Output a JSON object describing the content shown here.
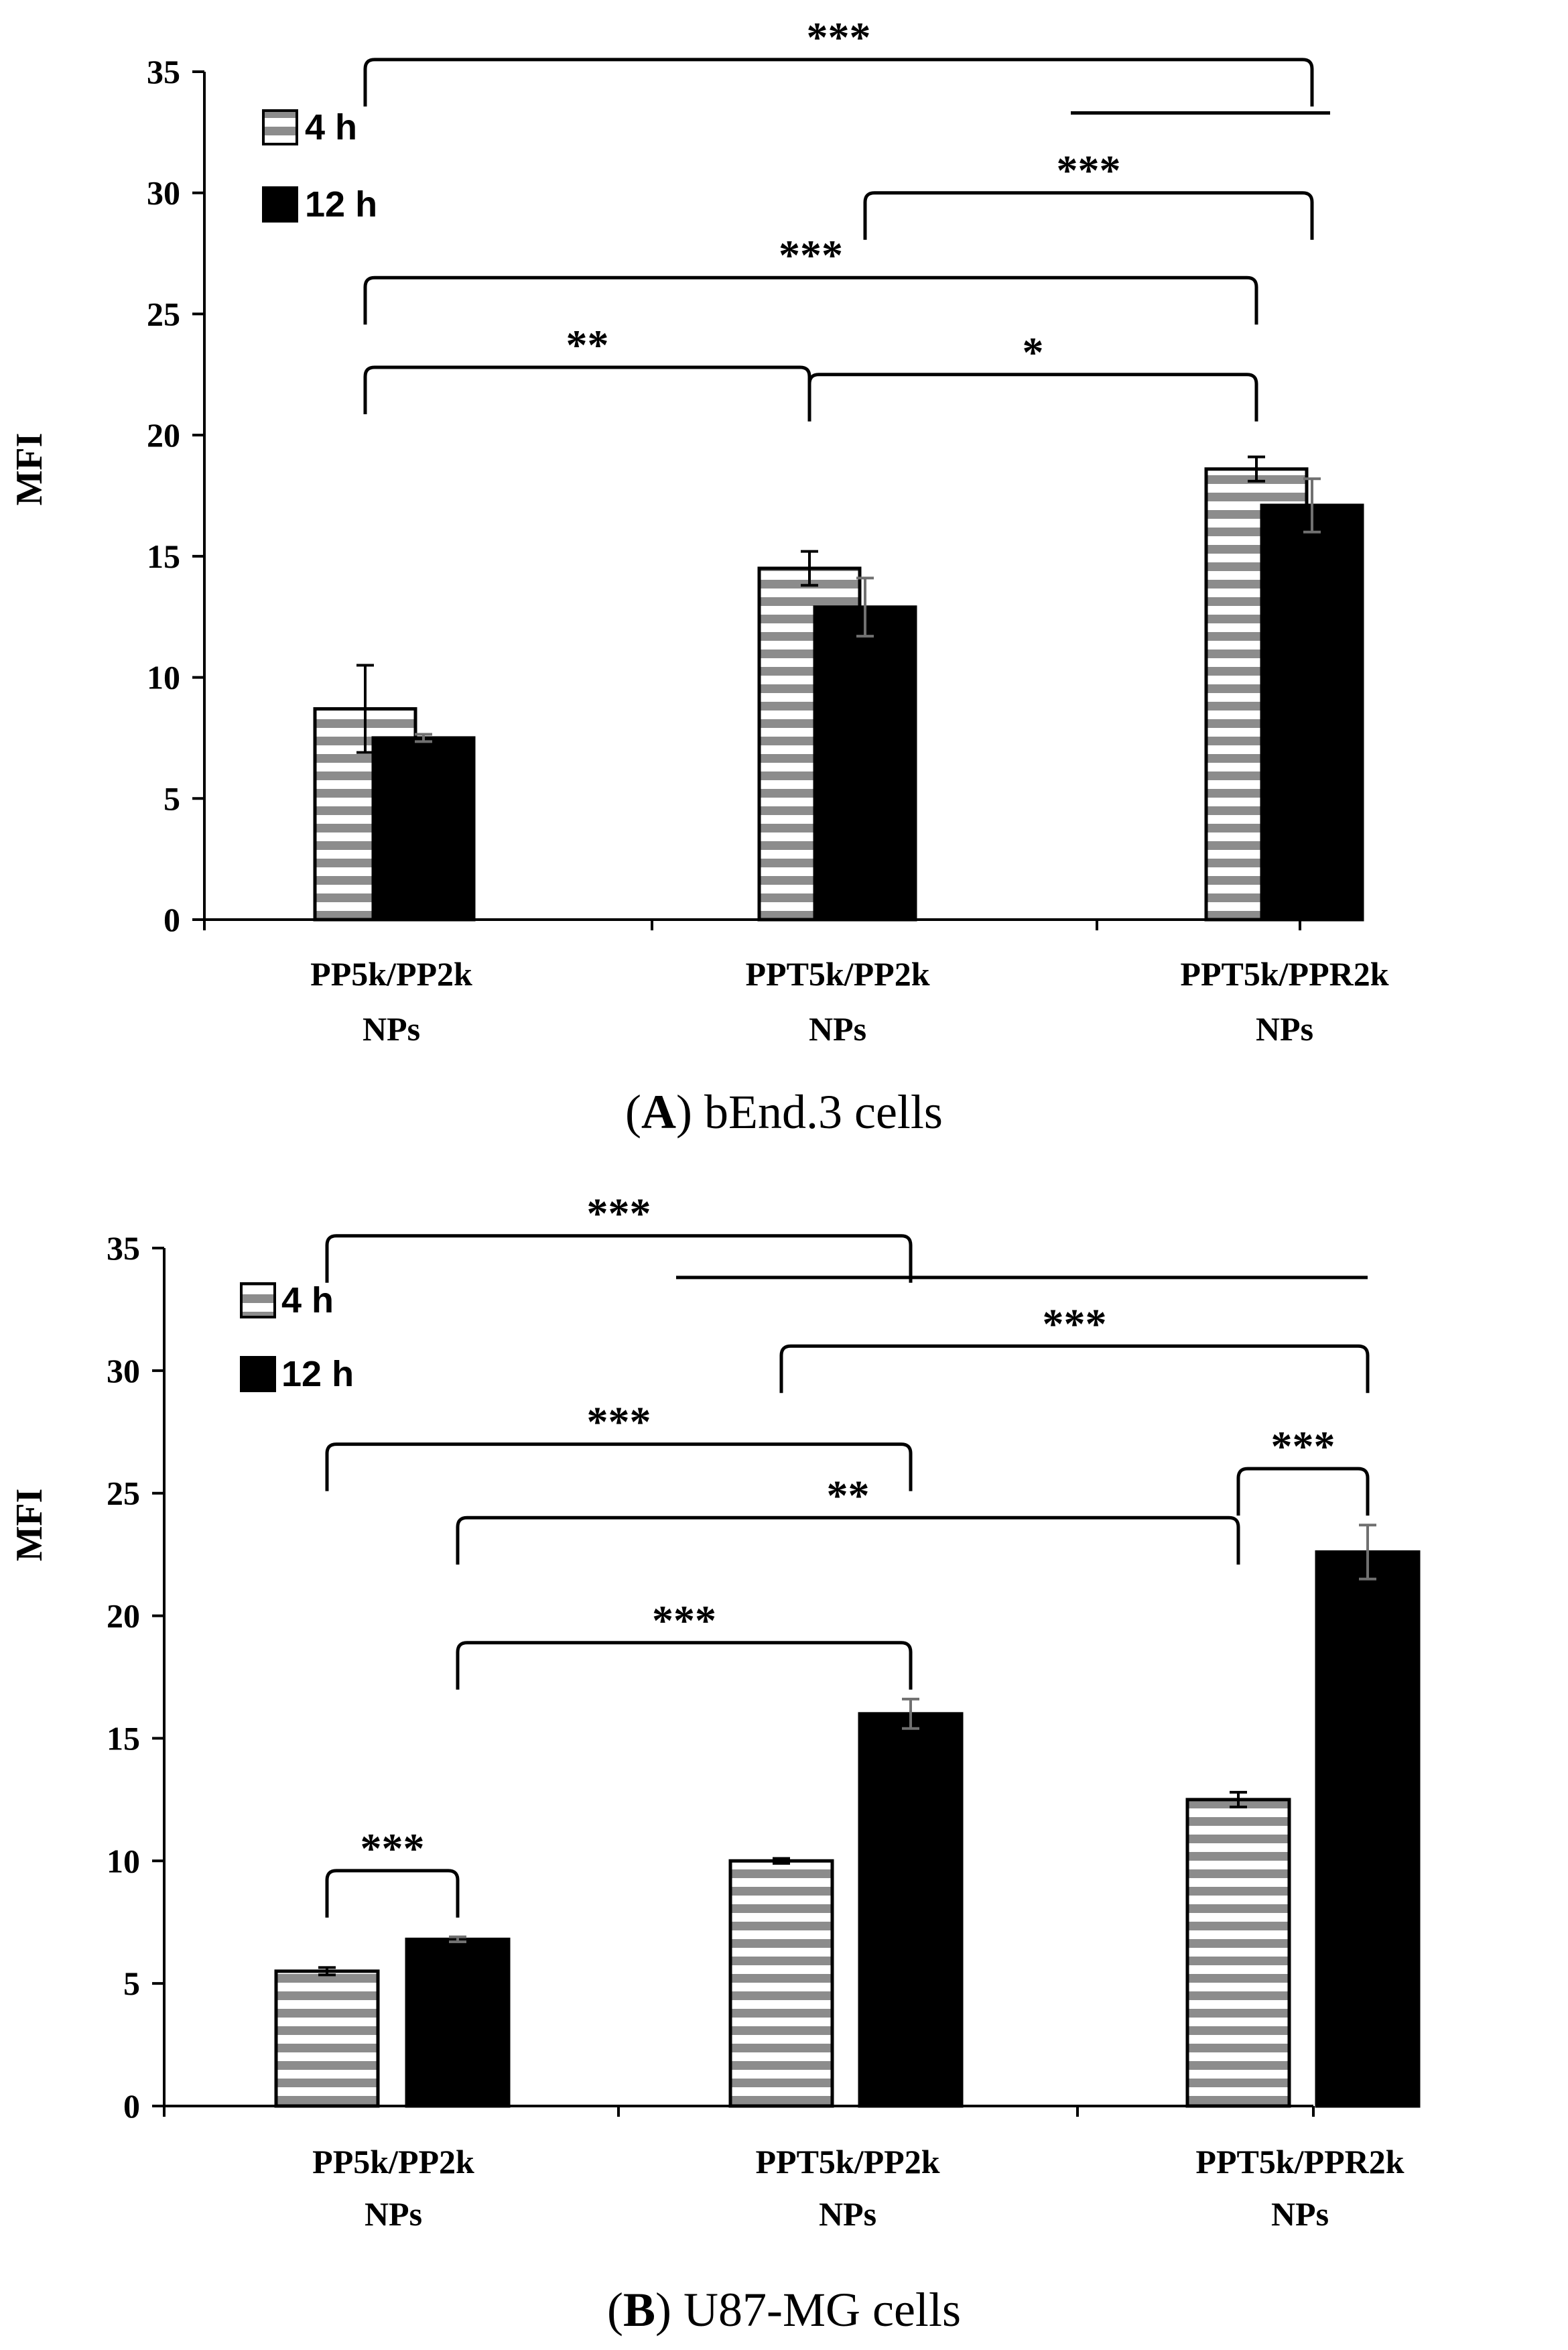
{
  "chart_data": [
    {
      "type": "bar",
      "panel_letter": "A",
      "caption_rest": " bEnd.3 cells",
      "ylabel": "MFI",
      "ylim": [
        0,
        35
      ],
      "yticks": [
        0,
        5,
        10,
        15,
        20,
        25,
        30,
        35
      ],
      "categories": [
        {
          "line1": "PP5k/PP2k",
          "line2": "NPs"
        },
        {
          "line1": "PPT5k/PP2k",
          "line2": "NPs"
        },
        {
          "line1": "PPT5k/PPR2k",
          "line2": "NPs"
        }
      ],
      "series": [
        {
          "name": "4 h",
          "pattern": "striped",
          "values": [
            8.7,
            14.5,
            18.6
          ],
          "errors": [
            1.8,
            0.7,
            0.5
          ]
        },
        {
          "name": "12 h",
          "pattern": "solid",
          "values": [
            7.5,
            12.9,
            17.1
          ],
          "errors": [
            0.15,
            1.2,
            1.1
          ]
        }
      ],
      "significance": [
        {
          "label": "***",
          "from": [
            0,
            0
          ],
          "to": [
            2,
            1
          ],
          "level": 35.5,
          "type": "bracket-to-line",
          "line_to": [
            2,
            0
          ],
          "line_level": 33.3
        },
        {
          "label": "***",
          "from": [
            1,
            1
          ],
          "to": [
            2,
            1
          ],
          "level": 30.0,
          "type": "bracket"
        },
        {
          "label": "***",
          "from": [
            0,
            0
          ],
          "to": [
            2,
            0
          ],
          "level": 26.5,
          "type": "bracket"
        },
        {
          "label": "**",
          "from": [
            0,
            0
          ],
          "to": [
            1,
            0
          ],
          "level": 22.8,
          "type": "bracket"
        },
        {
          "label": "*",
          "from": [
            1,
            0
          ],
          "to": [
            2,
            0
          ],
          "level": 22.5,
          "type": "bracket"
        }
      ]
    },
    {
      "type": "bar",
      "panel_letter": "B",
      "caption_rest": " U87-MG cells",
      "ylabel": "MFI",
      "ylim": [
        0,
        35
      ],
      "yticks": [
        0,
        5,
        10,
        15,
        20,
        25,
        30,
        35
      ],
      "categories": [
        {
          "line1": "PP5k/PP2k",
          "line2": "NPs"
        },
        {
          "line1": "PPT5k/PP2k",
          "line2": "NPs"
        },
        {
          "line1": "PPT5k/PPR2k",
          "line2": "NPs"
        }
      ],
      "series": [
        {
          "name": "4 h",
          "pattern": "striped",
          "values": [
            5.5,
            10.0,
            12.5
          ],
          "errors": [
            0.15,
            0.1,
            0.3
          ]
        },
        {
          "name": "12 h",
          "pattern": "solid",
          "values": [
            6.8,
            16.0,
            22.6
          ],
          "errors": [
            0.1,
            0.6,
            1.1
          ]
        }
      ],
      "significance": [
        {
          "label": "***",
          "from": [
            0,
            0
          ],
          "to": [
            1,
            1
          ],
          "level": 35.5,
          "type": "bracket-to-line",
          "line_to": [
            2,
            1
          ],
          "line_level": 33.8
        },
        {
          "label": "***",
          "from": [
            1,
            0
          ],
          "to": [
            2,
            1
          ],
          "level": 31.0,
          "type": "bracket"
        },
        {
          "label": "***",
          "from": [
            0,
            0
          ],
          "to": [
            1,
            1
          ],
          "level": 27.0,
          "type": "bracket"
        },
        {
          "label": "**",
          "from": [
            0,
            1
          ],
          "to": [
            2,
            0
          ],
          "level": 24.0,
          "type": "bracket"
        },
        {
          "label": "***",
          "from": [
            2,
            0
          ],
          "to": [
            2,
            1
          ],
          "level": 26.0,
          "type": "bracket"
        },
        {
          "label": "***",
          "from": [
            0,
            1
          ],
          "to": [
            1,
            1
          ],
          "level": 18.9,
          "type": "bracket"
        },
        {
          "label": "***",
          "from": [
            0,
            0
          ],
          "to": [
            0,
            1
          ],
          "level": 9.6,
          "type": "bracket"
        }
      ]
    }
  ]
}
